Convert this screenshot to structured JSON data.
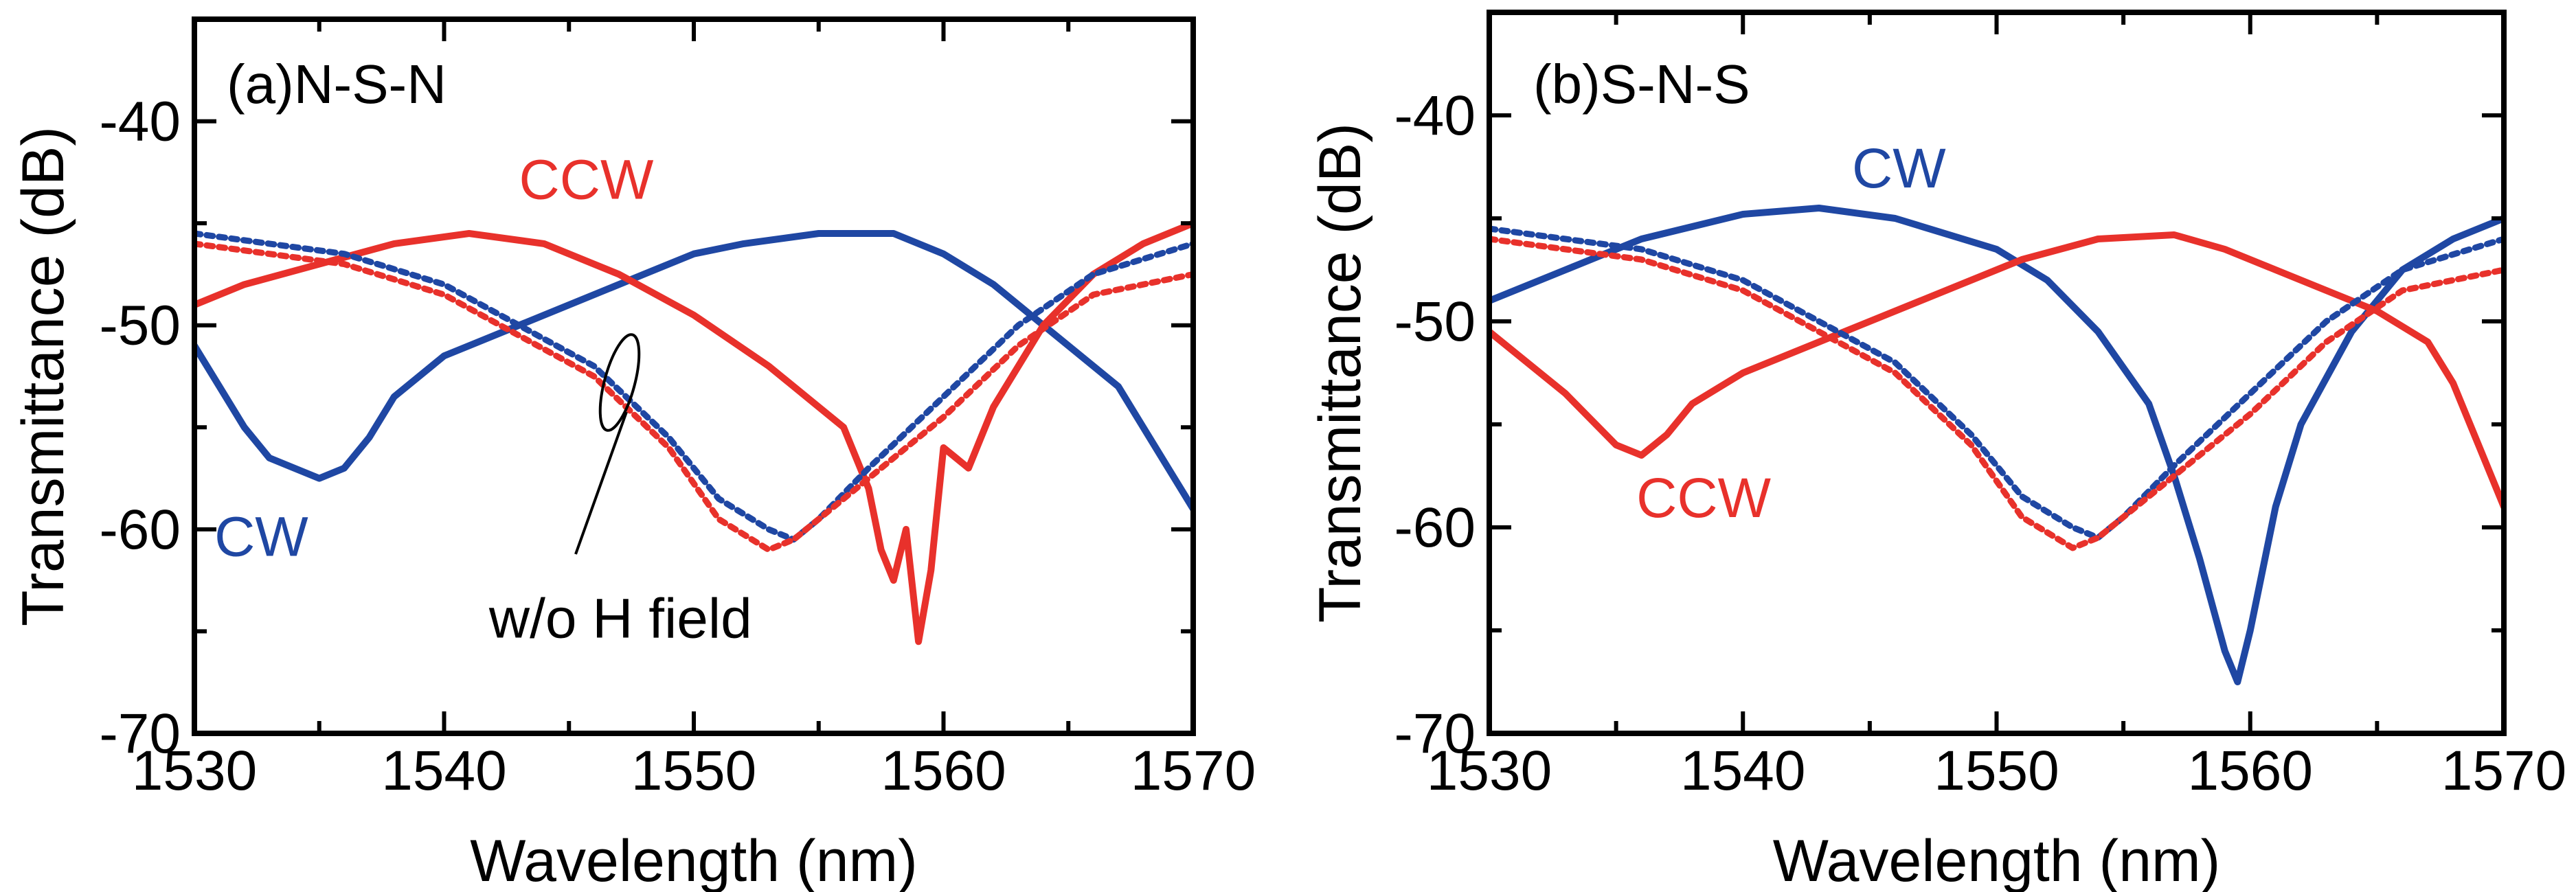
{
  "chart_data": [
    {
      "type": "line",
      "panel_label": "(a)N-S-N",
      "xlabel": "Wavelength (nm)",
      "ylabel": "Transmittance (dB)",
      "xlim": [
        1530,
        1570
      ],
      "ylim": [
        -70,
        -35
      ],
      "x_ticks": [
        1530,
        1540,
        1550,
        1560,
        1570
      ],
      "x_tick_labels": [
        "1530",
        "1540",
        "1550",
        "1560",
        "1570"
      ],
      "y_ticks": [
        -70,
        -60,
        -50,
        -40
      ],
      "y_tick_labels": [
        "-70",
        "-60",
        "-50",
        "-40"
      ],
      "series": [
        {
          "name": "CW",
          "color": "#1f47a3",
          "style": "solid",
          "x": [
            1530,
            1531,
            1532,
            1533,
            1534,
            1535,
            1536,
            1537,
            1538,
            1540,
            1542,
            1545,
            1548,
            1550,
            1552,
            1555,
            1558,
            1560,
            1562,
            1564,
            1566,
            1567,
            1568,
            1569,
            1570
          ],
          "y": [
            -51,
            -53,
            -55,
            -56.5,
            -57,
            -57.5,
            -57,
            -55.5,
            -53.5,
            -51.5,
            -50.5,
            -49,
            -47.5,
            -46.5,
            -46,
            -45.5,
            -45.5,
            -46.5,
            -48,
            -50,
            -52,
            -53,
            -55,
            -57,
            -59
          ]
        },
        {
          "name": "CCW",
          "color": "#e8312b",
          "style": "solid",
          "x": [
            1530,
            1532,
            1535,
            1538,
            1541,
            1544,
            1547,
            1550,
            1553,
            1555,
            1556,
            1557,
            1557.5,
            1558,
            1558.5,
            1559,
            1559.5,
            1560,
            1561,
            1562,
            1564,
            1566,
            1568,
            1570
          ],
          "y": [
            -49,
            -48,
            -47,
            -46,
            -45.5,
            -46,
            -47.5,
            -49.5,
            -52,
            -54,
            -55,
            -58,
            -61,
            -62.5,
            -60,
            -65.5,
            -62,
            -56,
            -57,
            -54,
            -50,
            -47.5,
            -46,
            -45
          ]
        },
        {
          "name": "w/o H field",
          "color": "#1f47a3",
          "style": "dotted",
          "x": [
            1530,
            1533,
            1536,
            1540,
            1543,
            1546,
            1549,
            1551,
            1553,
            1554,
            1555,
            1557,
            1560,
            1563,
            1566,
            1570
          ],
          "y": [
            -45.5,
            -46,
            -46.5,
            -48,
            -50,
            -52,
            -55.5,
            -58.5,
            -60,
            -60.5,
            -59.5,
            -57,
            -53.5,
            -50,
            -47.5,
            -46
          ]
        },
        {
          "name": "w/o H field",
          "color": "#e8312b",
          "style": "dotted",
          "x": [
            1530,
            1533,
            1536,
            1540,
            1543,
            1546,
            1549,
            1551,
            1553,
            1554,
            1555,
            1557,
            1560,
            1563,
            1566,
            1570
          ],
          "y": [
            -46,
            -46.5,
            -47,
            -48.5,
            -50.5,
            -52.5,
            -56,
            -59.5,
            -61,
            -60.5,
            -59.5,
            -57.5,
            -54.5,
            -51,
            -48.5,
            -47.5
          ]
        }
      ],
      "annotations": [
        {
          "text": "CCW",
          "color": "#e8312b",
          "x": 1543,
          "y": -43.8
        },
        {
          "text": "CW",
          "color": "#1f47a3",
          "x": 1530.8,
          "y": -61.3
        },
        {
          "text": "w/o H field",
          "color": "#000000",
          "x": 1541.8,
          "y": -65.3
        }
      ]
    },
    {
      "type": "line",
      "panel_label": "(b)S-N-S",
      "xlabel": "Wavelength (nm)",
      "ylabel": "Transmittance (dB)",
      "xlim": [
        1530,
        1570
      ],
      "ylim": [
        -70,
        -35
      ],
      "x_ticks": [
        1530,
        1540,
        1550,
        1560,
        1570
      ],
      "x_tick_labels": [
        "1530",
        "1540",
        "1550",
        "1560",
        "1570"
      ],
      "y_ticks": [
        -70,
        -60,
        -50,
        -40
      ],
      "y_tick_labels": [
        "-70",
        "-60",
        "-50",
        "-40"
      ],
      "series": [
        {
          "name": "CW",
          "color": "#1f47a3",
          "style": "solid",
          "x": [
            1530,
            1533,
            1536,
            1540,
            1543,
            1546,
            1550,
            1552,
            1554,
            1556,
            1557,
            1558,
            1559,
            1559.5,
            1560,
            1561,
            1562,
            1564,
            1566,
            1568,
            1570
          ],
          "y": [
            -49,
            -47.5,
            -46,
            -44.8,
            -44.5,
            -45,
            -46.5,
            -48,
            -50.5,
            -54,
            -57.5,
            -61.5,
            -66,
            -67.5,
            -65,
            -59,
            -55,
            -50.5,
            -47.5,
            -46,
            -45
          ]
        },
        {
          "name": "CCW",
          "color": "#e8312b",
          "style": "solid",
          "x": [
            1530,
            1531,
            1533,
            1535,
            1536,
            1537,
            1538,
            1540,
            1542,
            1545,
            1548,
            1551,
            1554,
            1557,
            1559,
            1561,
            1563,
            1565,
            1567,
            1568,
            1569,
            1570
          ],
          "y": [
            -50.5,
            -51.5,
            -53.5,
            -56,
            -56.5,
            -55.5,
            -54,
            -52.5,
            -51.5,
            -50,
            -48.5,
            -47,
            -46,
            -45.8,
            -46.5,
            -47.5,
            -48.5,
            -49.5,
            -51,
            -53,
            -56,
            -59
          ]
        },
        {
          "name": "w/o H field",
          "color": "#1f47a3",
          "style": "dotted",
          "x": [
            1530,
            1533,
            1536,
            1540,
            1543,
            1546,
            1549,
            1551,
            1553,
            1554,
            1555,
            1557,
            1560,
            1563,
            1566,
            1570
          ],
          "y": [
            -45.5,
            -46,
            -46.5,
            -48,
            -50,
            -52,
            -55.5,
            -58.5,
            -60,
            -60.5,
            -59.5,
            -57,
            -53.5,
            -50,
            -47.5,
            -46
          ]
        },
        {
          "name": "w/o H field",
          "color": "#e8312b",
          "style": "dotted",
          "x": [
            1530,
            1533,
            1536,
            1540,
            1543,
            1546,
            1549,
            1551,
            1553,
            1554,
            1555,
            1557,
            1560,
            1563,
            1566,
            1570
          ],
          "y": [
            -46,
            -46.5,
            -47,
            -48.5,
            -50.5,
            -52.5,
            -56,
            -59.5,
            -61,
            -60.5,
            -59.5,
            -57.5,
            -54.5,
            -51,
            -48.5,
            -47.5
          ]
        }
      ],
      "annotations": [
        {
          "text": "CW",
          "color": "#1f47a3",
          "x": 1544.3,
          "y": -43.5
        },
        {
          "text": "CCW",
          "color": "#e8312b",
          "x": 1535.8,
          "y": -59.5
        }
      ]
    }
  ]
}
